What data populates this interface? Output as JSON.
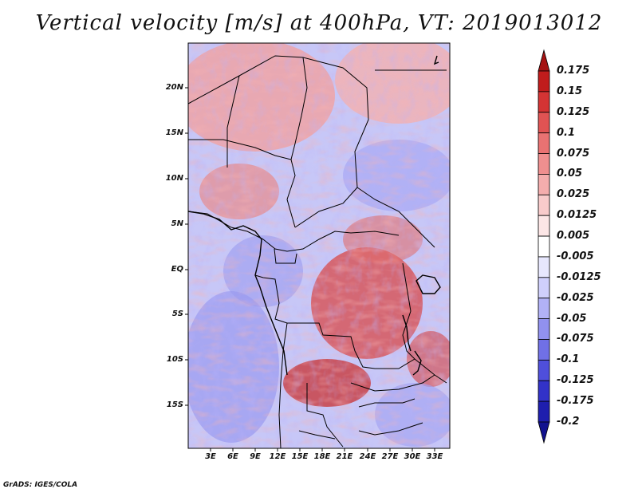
{
  "title": "Vertical velocity [m/s] at 400hPa, VT: 2019013012",
  "footer": "GrADS: IGES/COLA",
  "map": {
    "lat_labels": [
      "20N",
      "15N",
      "10N",
      "5N",
      "EQ",
      "5S",
      "10S",
      "15S"
    ],
    "lon_labels": [
      "3E",
      "6E",
      "9E",
      "12E",
      "15E",
      "18E",
      "21E",
      "24E",
      "27E",
      "30E",
      "33E"
    ]
  },
  "colorbar": {
    "labels": [
      "0.175",
      "0.15",
      "0.125",
      "0.1",
      "0.075",
      "0.05",
      "0.025",
      "0.0125",
      "0.005",
      "-0.005",
      "-0.0125",
      "-0.025",
      "-0.05",
      "-0.075",
      "-0.1",
      "-0.125",
      "-0.175",
      "-0.2"
    ],
    "colors": [
      "#a51212",
      "#c01c1c",
      "#d43434",
      "#e05353",
      "#e97272",
      "#ef8f8f",
      "#f4adad",
      "#f8cbcb",
      "#fce6e6",
      "#ffffff",
      "#e7e7fd",
      "#cfcffb",
      "#b1b1f6",
      "#9191ef",
      "#7070e6",
      "#4f4fdb",
      "#3232c8",
      "#1e1eae",
      "#12128f"
    ]
  }
}
